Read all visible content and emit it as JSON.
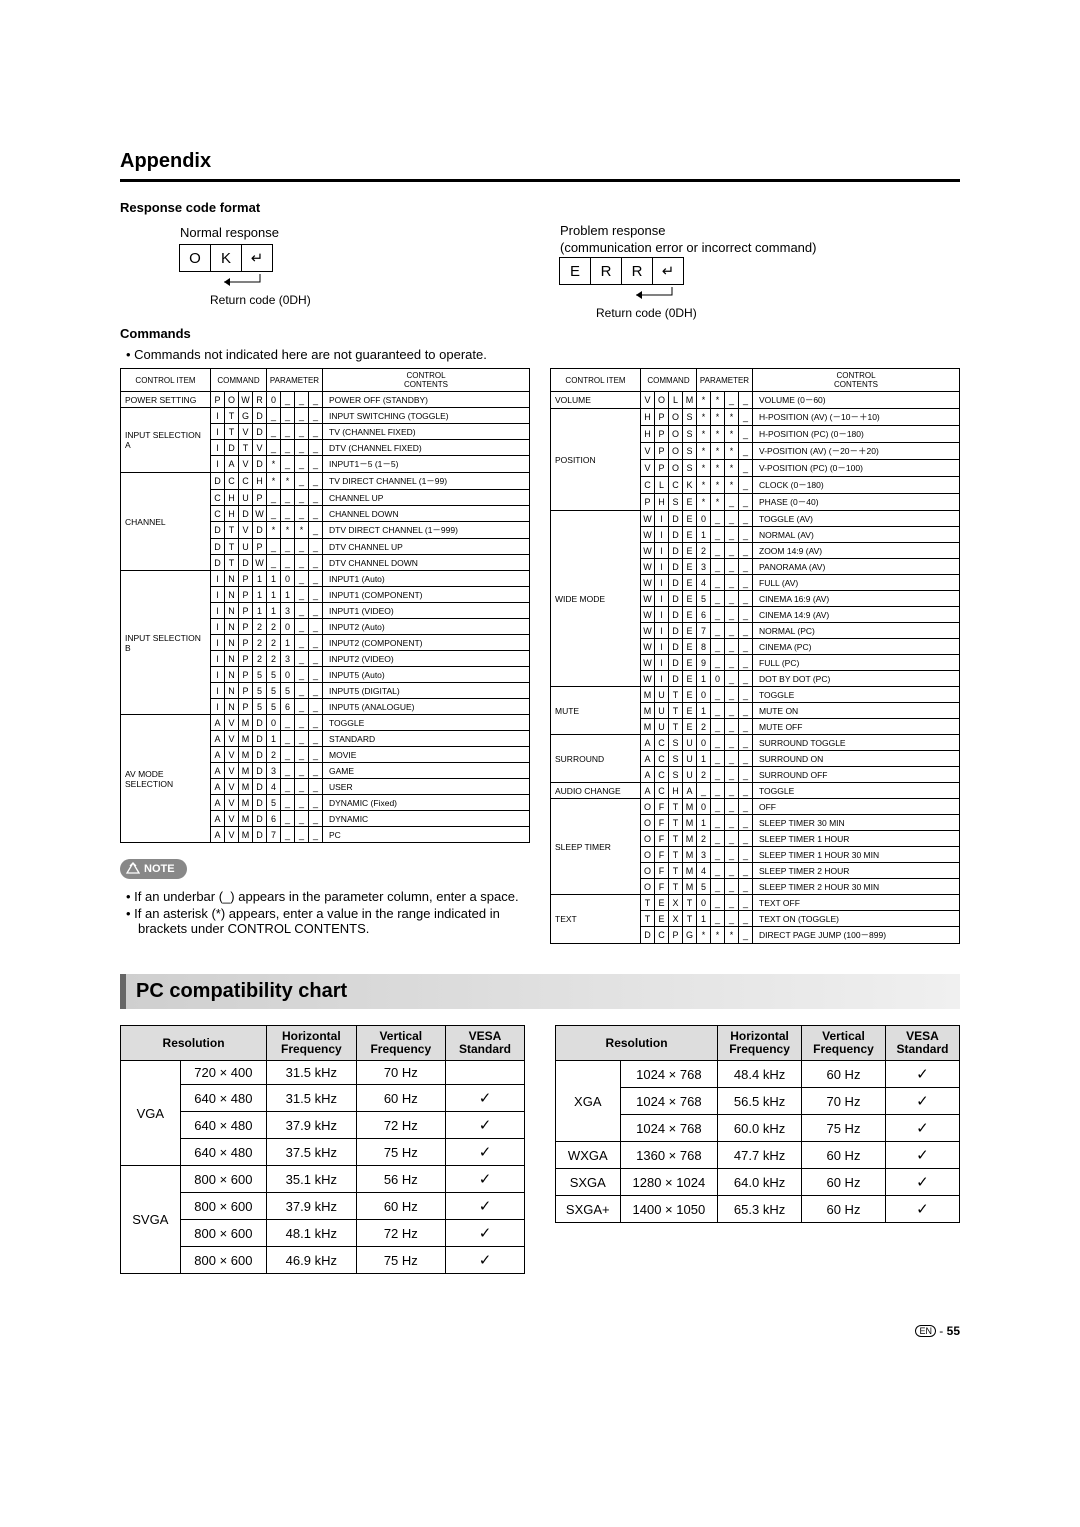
{
  "appendix_title": "Appendix",
  "response_code_heading": "Response code format",
  "normal_response_label": "Normal response",
  "ok_cells": [
    "O",
    "K",
    "↵"
  ],
  "return_code_label": "Return code (0DH)",
  "problem_response_label": "Problem response",
  "problem_response_sub": "(communication error or incorrect command)",
  "err_cells": [
    "E",
    "R",
    "R",
    "↵"
  ],
  "commands_heading": "Commands",
  "commands_caveat": "Commands not indicated here are not guaranteed to operate.",
  "cmd_headers": {
    "control_item": "CONTROL ITEM",
    "command": "COMMAND",
    "parameter": "PARAMETER",
    "control_contents": "CONTROL\nCONTENTS"
  },
  "left_rows": [
    {
      "item": "POWER SETTING",
      "cmd": [
        "P",
        "O",
        "W",
        "R"
      ],
      "par": [
        "0",
        "_",
        "_",
        "_"
      ],
      "desc": "POWER OFF (STANDBY)"
    },
    {
      "item": "INPUT SELECTION A",
      "span": 4,
      "cmd": [
        "I",
        "T",
        "G",
        "D"
      ],
      "par": [
        "_",
        "_",
        "_",
        "_"
      ],
      "desc": "INPUT SWITCHING (TOGGLE)"
    },
    {
      "cmd": [
        "I",
        "T",
        "V",
        "D"
      ],
      "par": [
        "_",
        "_",
        "_",
        "_"
      ],
      "desc": "TV (CHANNEL FIXED)"
    },
    {
      "cmd": [
        "I",
        "D",
        "T",
        "V"
      ],
      "par": [
        "_",
        "_",
        "_",
        "_"
      ],
      "desc": "DTV (CHANNEL FIXED)"
    },
    {
      "cmd": [
        "I",
        "A",
        "V",
        "D"
      ],
      "par": [
        "*",
        "_",
        "_",
        "_"
      ],
      "desc": "INPUT1－5 (1－5)"
    },
    {
      "item": "CHANNEL",
      "span": 6,
      "cmd": [
        "D",
        "C",
        "C",
        "H"
      ],
      "par": [
        "*",
        "*",
        "_",
        "_"
      ],
      "desc": "TV DIRECT CHANNEL (1－99)"
    },
    {
      "cmd": [
        "C",
        "H",
        "U",
        "P"
      ],
      "par": [
        "_",
        "_",
        "_",
        "_"
      ],
      "desc": "CHANNEL UP"
    },
    {
      "cmd": [
        "C",
        "H",
        "D",
        "W"
      ],
      "par": [
        "_",
        "_",
        "_",
        "_"
      ],
      "desc": "CHANNEL DOWN"
    },
    {
      "cmd": [
        "D",
        "T",
        "V",
        "D"
      ],
      "par": [
        "*",
        "*",
        "*",
        "_"
      ],
      "desc": "DTV DIRECT CHANNEL  (1－999)"
    },
    {
      "cmd": [
        "D",
        "T",
        "U",
        "P"
      ],
      "par": [
        "_",
        "_",
        "_",
        "_"
      ],
      "desc": "DTV CHANNEL UP"
    },
    {
      "cmd": [
        "D",
        "T",
        "D",
        "W"
      ],
      "par": [
        "_",
        "_",
        "_",
        "_"
      ],
      "desc": "DTV CHANNEL DOWN"
    },
    {
      "item": "INPUT SELECTION B",
      "span": 9,
      "cmd": [
        "I",
        "N",
        "P",
        " 1"
      ],
      "par": [
        "1",
        "0",
        "_",
        "_"
      ],
      "desc": "INPUT1 (Auto)"
    },
    {
      "cmd": [
        "I",
        "N",
        "P",
        " 1"
      ],
      "par": [
        "1",
        "1",
        "_",
        "_"
      ],
      "desc": "INPUT1 (COMPONENT)"
    },
    {
      "cmd": [
        "I",
        "N",
        "P",
        " 1"
      ],
      "par": [
        "1",
        "3",
        "_",
        "_"
      ],
      "desc": "INPUT1 (VIDEO)"
    },
    {
      "cmd": [
        "I",
        "N",
        "P",
        " 2"
      ],
      "par": [
        "2",
        "0",
        "_",
        "_"
      ],
      "desc": "INPUT2 (Auto)"
    },
    {
      "cmd": [
        "I",
        "N",
        "P",
        " 2"
      ],
      "par": [
        "2",
        "1",
        "_",
        "_"
      ],
      "desc": "INPUT2 (COMPONENT)"
    },
    {
      "cmd": [
        "I",
        "N",
        "P",
        " 2"
      ],
      "par": [
        "2",
        "3",
        "_",
        "_"
      ],
      "desc": "INPUT2 (VIDEO)"
    },
    {
      "cmd": [
        "I",
        "N",
        "P",
        " 5"
      ],
      "par": [
        "5",
        "0",
        "_",
        "_"
      ],
      "desc": "INPUT5 (Auto)"
    },
    {
      "cmd": [
        "I",
        "N",
        "P",
        " 5"
      ],
      "par": [
        "5",
        "5",
        "_",
        "_"
      ],
      "desc": "INPUT5 (DIGITAL)"
    },
    {
      "cmd": [
        "I",
        "N",
        "P",
        " 5"
      ],
      "par": [
        "5",
        "6",
        "_",
        "_"
      ],
      "desc": "INPUT5 (ANALOGUE)"
    },
    {
      "item": "AV MODE SELECTION",
      "span": 8,
      "cmd": [
        "A",
        "V",
        "M",
        "D"
      ],
      "par": [
        "0",
        "_",
        "_",
        "_"
      ],
      "desc": "TOGGLE"
    },
    {
      "cmd": [
        "A",
        "V",
        "M",
        "D"
      ],
      "par": [
        "1",
        "_",
        "_",
        "_"
      ],
      "desc": "STANDARD"
    },
    {
      "cmd": [
        "A",
        "V",
        "M",
        "D"
      ],
      "par": [
        "2",
        "_",
        "_",
        "_"
      ],
      "desc": "MOVIE"
    },
    {
      "cmd": [
        "A",
        "V",
        "M",
        "D"
      ],
      "par": [
        "3",
        "_",
        "_",
        "_"
      ],
      "desc": "GAME"
    },
    {
      "cmd": [
        "A",
        "V",
        "M",
        "D"
      ],
      "par": [
        "4",
        "_",
        "_",
        "_"
      ],
      "desc": "USER"
    },
    {
      "cmd": [
        "A",
        "V",
        "M",
        "D"
      ],
      "par": [
        "5",
        "_",
        "_",
        "_"
      ],
      "desc": "DYNAMIC (Fixed)"
    },
    {
      "cmd": [
        "A",
        "V",
        "M",
        "D"
      ],
      "par": [
        "6",
        "_",
        "_",
        "_"
      ],
      "desc": "DYNAMIC"
    },
    {
      "cmd": [
        "A",
        "V",
        "M",
        "D"
      ],
      "par": [
        "7",
        "_",
        "_",
        "_"
      ],
      "desc": "PC"
    }
  ],
  "right_rows": [
    {
      "item": "VOLUME",
      "cmd": [
        "V",
        "O",
        "L",
        "M"
      ],
      "par": [
        "*",
        "*",
        "_",
        "_"
      ],
      "desc": "VOLUME (0－60)"
    },
    {
      "item": "POSITION",
      "span": 6,
      "cmd": [
        "H",
        "P",
        "O",
        "S"
      ],
      "par": [
        "*",
        "*",
        "*",
        "_"
      ],
      "desc": "H-POSITION (AV) (－10－＋10)"
    },
    {
      "cmd": [
        "H",
        "P",
        "O",
        "S"
      ],
      "par": [
        "*",
        "*",
        "*",
        "_"
      ],
      "desc": "H-POSITION (PC) (0－180)"
    },
    {
      "cmd": [
        "V",
        "P",
        "O",
        "S"
      ],
      "par": [
        "*",
        "*",
        "*",
        "_"
      ],
      "desc": "V-POSITION (AV) (－20－＋20)"
    },
    {
      "cmd": [
        "V",
        "P",
        "O",
        "S"
      ],
      "par": [
        "*",
        "*",
        "*",
        "_"
      ],
      "desc": "V-POSITION (PC) (0－100)"
    },
    {
      "cmd": [
        "C",
        "L",
        "C",
        "K"
      ],
      "par": [
        "*",
        "*",
        "*",
        "_"
      ],
      "desc": "CLOCK (0－180)"
    },
    {
      "cmd": [
        "P",
        "H",
        "S",
        "E"
      ],
      "par": [
        "*",
        "*",
        "_",
        "_"
      ],
      "desc": "PHASE (0－40)"
    },
    {
      "item": "WIDE MODE",
      "span": 11,
      "cmd": [
        "W",
        "I",
        "D",
        "E"
      ],
      "par": [
        "0",
        "_",
        "_",
        "_"
      ],
      "desc": "TOGGLE (AV)"
    },
    {
      "cmd": [
        "W",
        "I",
        "D",
        "E"
      ],
      "par": [
        "1",
        "_",
        "_",
        "_"
      ],
      "desc": "NORMAL (AV)"
    },
    {
      "cmd": [
        "W",
        "I",
        "D",
        "E"
      ],
      "par": [
        "2",
        "_",
        "_",
        "_"
      ],
      "desc": "ZOOM 14:9 (AV)"
    },
    {
      "cmd": [
        "W",
        "I",
        "D",
        "E"
      ],
      "par": [
        "3",
        "_",
        "_",
        "_"
      ],
      "desc": "PANORAMA (AV)"
    },
    {
      "cmd": [
        "W",
        "I",
        "D",
        "E"
      ],
      "par": [
        "4",
        "_",
        "_",
        "_"
      ],
      "desc": "FULL (AV)"
    },
    {
      "cmd": [
        "W",
        "I",
        "D",
        "E"
      ],
      "par": [
        "5",
        "_",
        "_",
        "_"
      ],
      "desc": "CINEMA 16:9 (AV)"
    },
    {
      "cmd": [
        "W",
        "I",
        "D",
        "E"
      ],
      "par": [
        "6",
        "_",
        "_",
        "_"
      ],
      "desc": "CINEMA 14:9 (AV)"
    },
    {
      "cmd": [
        "W",
        "I",
        "D",
        "E"
      ],
      "par": [
        "7",
        "_",
        "_",
        "_"
      ],
      "desc": "NORMAL (PC)"
    },
    {
      "cmd": [
        "W",
        "I",
        "D",
        "E"
      ],
      "par": [
        "8",
        "_",
        "_",
        "_"
      ],
      "desc": "CINEMA (PC)"
    },
    {
      "cmd": [
        "W",
        "I",
        "D",
        "E"
      ],
      "par": [
        "9",
        "_",
        "_",
        "_"
      ],
      "desc": "FULL (PC)"
    },
    {
      "cmd": [
        "W",
        "I",
        "D",
        "E"
      ],
      "par": [
        "1",
        "0",
        "_",
        "_"
      ],
      "desc": "DOT BY DOT (PC)"
    },
    {
      "item": "MUTE",
      "span": 3,
      "cmd": [
        "M",
        "U",
        "T",
        "E"
      ],
      "par": [
        "0",
        "_",
        "_",
        "_"
      ],
      "desc": "TOGGLE"
    },
    {
      "cmd": [
        "M",
        "U",
        "T",
        "E"
      ],
      "par": [
        "1",
        "_",
        "_",
        "_"
      ],
      "desc": "MUTE ON"
    },
    {
      "cmd": [
        "M",
        "U",
        "T",
        "E"
      ],
      "par": [
        "2",
        "_",
        "_",
        "_"
      ],
      "desc": "MUTE OFF"
    },
    {
      "item": "SURROUND",
      "span": 3,
      "cmd": [
        "A",
        "C",
        "S",
        "U"
      ],
      "par": [
        "0",
        "_",
        "_",
        "_"
      ],
      "desc": "SURROUND TOGGLE"
    },
    {
      "cmd": [
        "A",
        "C",
        "S",
        "U"
      ],
      "par": [
        "1",
        "_",
        "_",
        "_"
      ],
      "desc": "SURROUND ON"
    },
    {
      "cmd": [
        "A",
        "C",
        "S",
        "U"
      ],
      "par": [
        "2",
        "_",
        "_",
        "_"
      ],
      "desc": "SURROUND OFF"
    },
    {
      "item": "AUDIO CHANGE",
      "cmd": [
        "A",
        "C",
        "H",
        "A"
      ],
      "par": [
        "_",
        "_",
        "_",
        "_"
      ],
      "desc": "TOGGLE"
    },
    {
      "item": "SLEEP TIMER",
      "span": 6,
      "cmd": [
        "O",
        "F",
        "T",
        "M"
      ],
      "par": [
        "0",
        "_",
        "_",
        "_"
      ],
      "desc": "OFF"
    },
    {
      "cmd": [
        "O",
        "F",
        "T",
        "M"
      ],
      "par": [
        "1",
        "_",
        "_",
        "_"
      ],
      "desc": "SLEEP TIMER 30 MIN"
    },
    {
      "cmd": [
        "O",
        "F",
        "T",
        "M"
      ],
      "par": [
        "2",
        "_",
        "_",
        "_"
      ],
      "desc": "SLEEP TIMER 1 HOUR"
    },
    {
      "cmd": [
        "O",
        "F",
        "T",
        "M"
      ],
      "par": [
        "3",
        "_",
        "_",
        "_"
      ],
      "desc": "SLEEP TIMER 1 HOUR 30 MIN"
    },
    {
      "cmd": [
        "O",
        "F",
        "T",
        "M"
      ],
      "par": [
        "4",
        "_",
        "_",
        "_"
      ],
      "desc": "SLEEP TIMER 2 HOUR"
    },
    {
      "cmd": [
        "O",
        "F",
        "T",
        "M"
      ],
      "par": [
        "5",
        "_",
        "_",
        "_"
      ],
      "desc": "SLEEP TIMER 2 HOUR 30 MIN"
    },
    {
      "item": "TEXT",
      "span": 3,
      "cmd": [
        "T",
        "E",
        "X",
        "T"
      ],
      "par": [
        "0",
        "_",
        "_",
        "_"
      ],
      "desc": "TEXT OFF"
    },
    {
      "cmd": [
        "T",
        "E",
        "X",
        "T"
      ],
      "par": [
        "1",
        "_",
        "_",
        "_"
      ],
      "desc": "TEXT ON (TOGGLE)"
    },
    {
      "cmd": [
        "D",
        "C",
        "P",
        "G"
      ],
      "par": [
        "*",
        "*",
        "*",
        "_"
      ],
      "desc": "DIRECT PAGE JUMP (100－899)"
    }
  ],
  "note_label": "NOTE",
  "note_items": [
    "If an underbar (_) appears in the parameter column, enter a space.",
    "If an asterisk (*) appears, enter a value in the range indicated in brackets under CONTROL CONTENTS."
  ],
  "pc_chart_title": "PC compatibility chart",
  "pc_headers": {
    "resolution": "Resolution",
    "hfreq": "Horizontal\nFrequency",
    "vfreq": "Vertical\nFrequency",
    "vesa": "VESA\nStandard"
  },
  "pc_left": [
    {
      "grp": "VGA",
      "span": 4,
      "res": "720 × 400",
      "h": "31.5 kHz",
      "v": "70 Hz",
      "vesa": ""
    },
    {
      "res": "640 × 480",
      "h": "31.5 kHz",
      "v": "60 Hz",
      "vesa": "✓"
    },
    {
      "res": "640 × 480",
      "h": "37.9 kHz",
      "v": "72 Hz",
      "vesa": "✓"
    },
    {
      "res": "640 × 480",
      "h": "37.5 kHz",
      "v": "75 Hz",
      "vesa": "✓"
    },
    {
      "grp": "SVGA",
      "span": 4,
      "res": "800 × 600",
      "h": "35.1 kHz",
      "v": "56 Hz",
      "vesa": "✓"
    },
    {
      "res": "800 × 600",
      "h": "37.9 kHz",
      "v": "60 Hz",
      "vesa": "✓"
    },
    {
      "res": "800 × 600",
      "h": "48.1 kHz",
      "v": "72 Hz",
      "vesa": "✓"
    },
    {
      "res": "800 × 600",
      "h": "46.9 kHz",
      "v": "75 Hz",
      "vesa": "✓"
    }
  ],
  "pc_right": [
    {
      "grp": "XGA",
      "span": 3,
      "res": "1024 × 768",
      "h": "48.4 kHz",
      "v": "60 Hz",
      "vesa": "✓"
    },
    {
      "res": "1024 × 768",
      "h": "56.5 kHz",
      "v": "70 Hz",
      "vesa": "✓"
    },
    {
      "res": "1024 × 768",
      "h": "60.0 kHz",
      "v": "75 Hz",
      "vesa": "✓"
    },
    {
      "grp": "WXGA",
      "span": 1,
      "res": "1360 × 768",
      "h": "47.7 kHz",
      "v": "60 Hz",
      "vesa": "✓"
    },
    {
      "grp": "SXGA",
      "span": 1,
      "res": "1280 × 1024",
      "h": "64.0 kHz",
      "v": "60 Hz",
      "vesa": "✓"
    },
    {
      "grp": "SXGA+",
      "span": 1,
      "res": "1400 × 1050",
      "h": "65.3 kHz",
      "v": "60 Hz",
      "vesa": "✓"
    }
  ],
  "page_lang": "EN",
  "page_num": "55"
}
